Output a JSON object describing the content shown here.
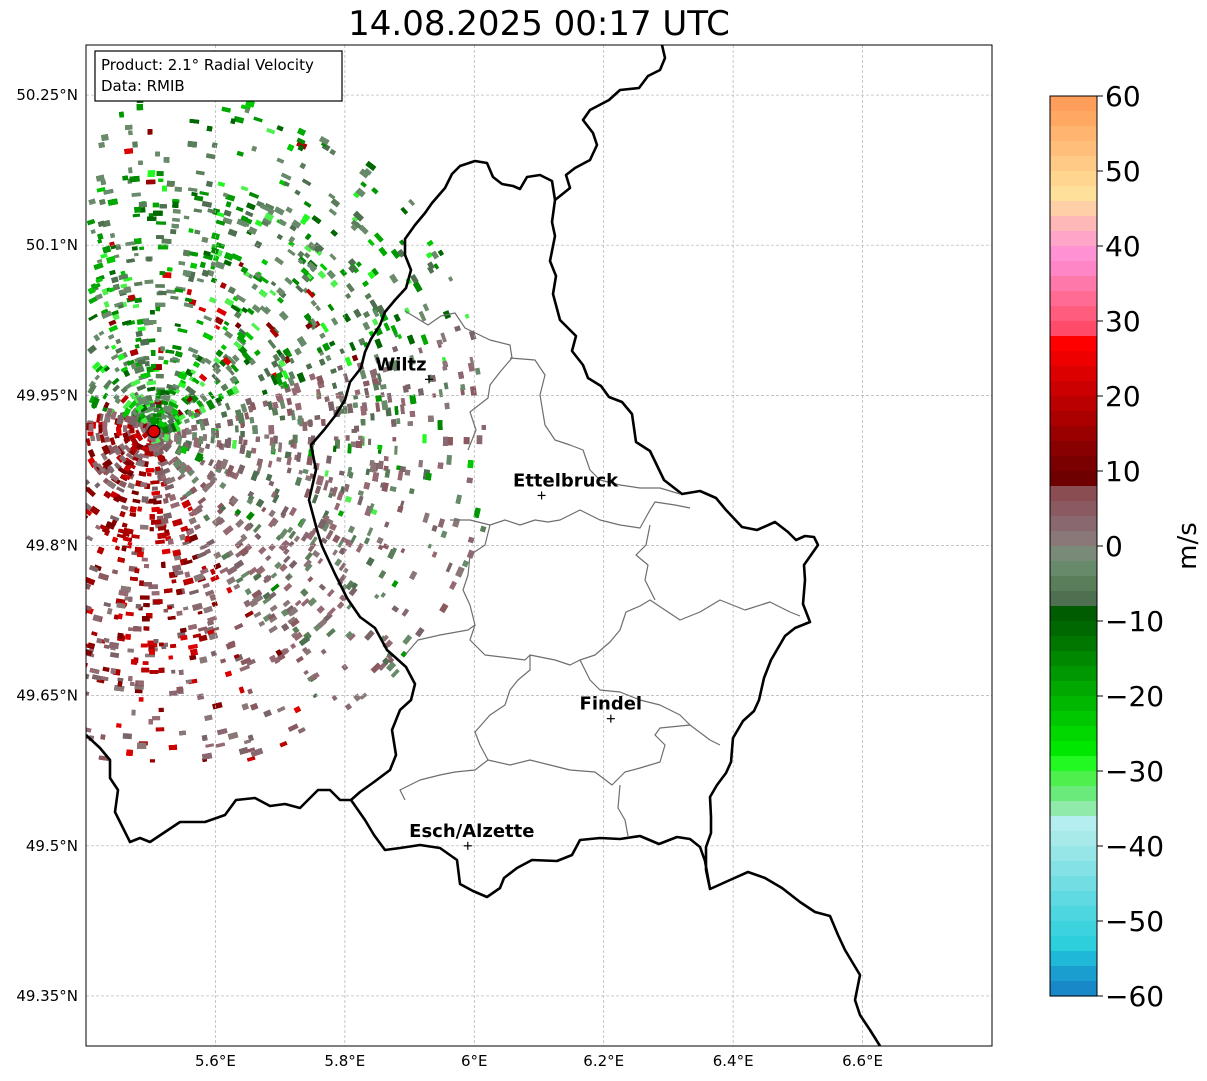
{
  "title": "14.08.2025 00:17 UTC",
  "info_box": {
    "line1": "Product: 2.1° Radial Velocity",
    "line2": "Data: RMIB"
  },
  "map": {
    "lon_range": [
      5.4,
      6.8
    ],
    "lat_range": [
      49.3,
      50.3
    ],
    "lat_ticks": [
      {
        "value": 49.35,
        "label": "49.35°N"
      },
      {
        "value": 49.5,
        "label": "49.5°N"
      },
      {
        "value": 49.65,
        "label": "49.65°N"
      },
      {
        "value": 49.8,
        "label": "49.8°N"
      },
      {
        "value": 49.95,
        "label": "49.95°N"
      },
      {
        "value": 50.1,
        "label": "50.1°N"
      },
      {
        "value": 50.25,
        "label": "50.25°N"
      }
    ],
    "lon_ticks": [
      {
        "value": 5.6,
        "label": "5.6°E"
      },
      {
        "value": 5.8,
        "label": "5.8°E"
      },
      {
        "value": 6.0,
        "label": "6°E"
      },
      {
        "value": 6.2,
        "label": "6.2°E"
      },
      {
        "value": 6.4,
        "label": "6.4°E"
      },
      {
        "value": 6.6,
        "label": "6.6°E"
      }
    ],
    "radar_site": {
      "lon": 5.505,
      "lat": 49.914
    },
    "cities": [
      {
        "name": "Wiltz",
        "lon": 5.93,
        "lat": 49.966
      },
      {
        "name": "Ettelbruck",
        "lon": 6.104,
        "lat": 49.85
      },
      {
        "name": "Findel",
        "lon": 6.211,
        "lat": 49.627
      },
      {
        "name": "Esch/Alzette",
        "lon": 5.99,
        "lat": 49.5
      }
    ]
  },
  "colorbar": {
    "unit": "m/s",
    "min": -60,
    "max": 60,
    "ticks": [
      {
        "value": 60,
        "label": "60"
      },
      {
        "value": 50,
        "label": "50"
      },
      {
        "value": 40,
        "label": "40"
      },
      {
        "value": 30,
        "label": "30"
      },
      {
        "value": 20,
        "label": "20"
      },
      {
        "value": 10,
        "label": "10"
      },
      {
        "value": 0,
        "label": "0"
      },
      {
        "value": -10,
        "label": "−10"
      },
      {
        "value": -20,
        "label": "−20"
      },
      {
        "value": -30,
        "label": "−30"
      },
      {
        "value": -40,
        "label": "−40"
      },
      {
        "value": -50,
        "label": "−50"
      },
      {
        "value": -60,
        "label": "−60"
      }
    ],
    "colors_top_to_bottom": [
      "#ff9e5a",
      "#ffa862",
      "#ffb46f",
      "#ffbf7b",
      "#ffca86",
      "#ffd590",
      "#ffe09a",
      "#ffd0a8",
      "#ffb8b8",
      "#ffa5c8",
      "#ff92d2",
      "#ff86c6",
      "#ff78aa",
      "#ff6b92",
      "#ff5c7e",
      "#ff4a6a",
      "#ff0000",
      "#ee0000",
      "#dd0000",
      "#cc0000",
      "#bb0000",
      "#aa0000",
      "#990000",
      "#880000",
      "#7a0000",
      "#6e0000",
      "#8a4d52",
      "#8a5a60",
      "#8a6870",
      "#8a7878",
      "#7a8a78",
      "#668a6a",
      "#5a7d5a",
      "#4e7050",
      "#005c00",
      "#006800",
      "#007800",
      "#008800",
      "#009800",
      "#00a800",
      "#00b800",
      "#00c800",
      "#00d800",
      "#00e800",
      "#22f822",
      "#4df04d",
      "#6aea7a",
      "#90eaaa",
      "#b4eef0",
      "#a8eaea",
      "#96e6e8",
      "#84e2e6",
      "#72dee4",
      "#60dae2",
      "#4ed6e0",
      "#3cd2de",
      "#2ecfdd",
      "#20b8d8",
      "#1a9ed0",
      "#1888c8"
    ]
  }
}
